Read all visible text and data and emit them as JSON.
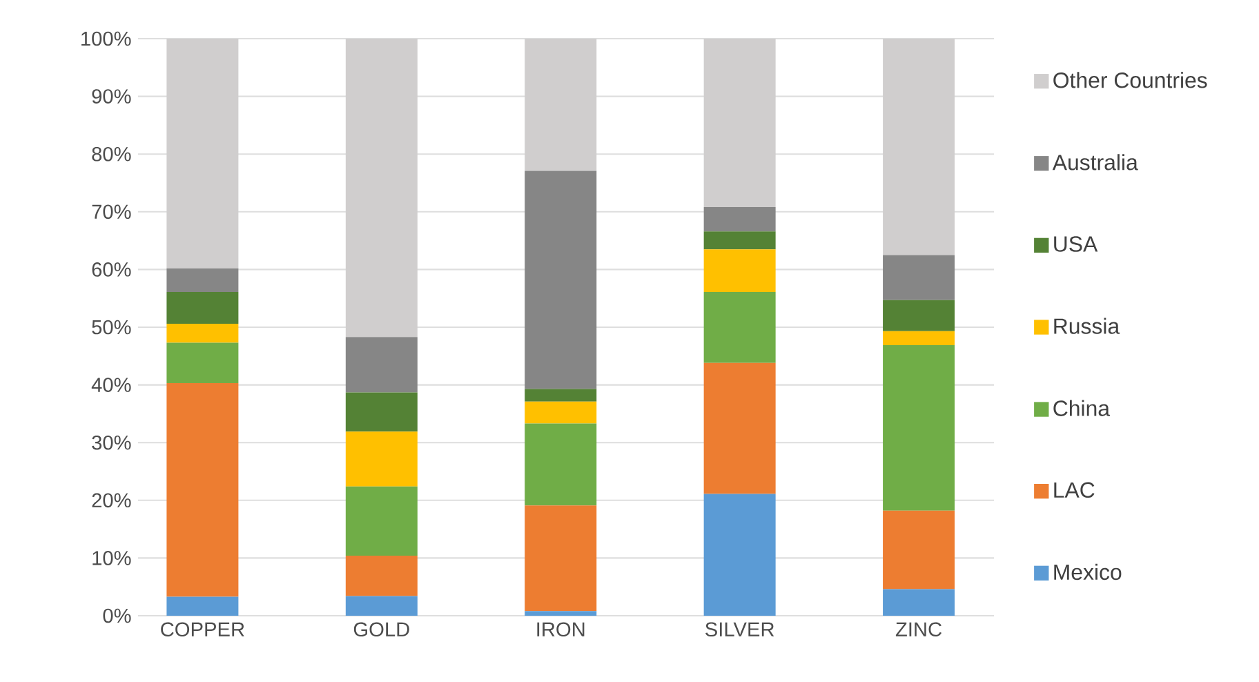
{
  "chart_data": {
    "type": "bar",
    "stacked": true,
    "categories": [
      "COPPER",
      "GOLD",
      "IRON",
      "SILVER",
      "ZINC"
    ],
    "series": [
      {
        "name": "Mexico",
        "color": "#5b9bd5",
        "values": [
          3.3,
          3.4,
          0.8,
          21.1,
          4.6
        ]
      },
      {
        "name": "LAC",
        "color": "#ed7d31",
        "values": [
          37.0,
          7.0,
          18.3,
          22.7,
          13.6
        ]
      },
      {
        "name": "China",
        "color": "#70ad47",
        "values": [
          7.0,
          12.0,
          14.2,
          12.3,
          28.7
        ]
      },
      {
        "name": "Russia",
        "color": "#ffc000",
        "values": [
          3.3,
          9.5,
          3.8,
          7.4,
          2.4
        ]
      },
      {
        "name": "USA",
        "color": "#548235",
        "values": [
          5.5,
          6.8,
          2.2,
          3.1,
          5.4
        ]
      },
      {
        "name": "Australia",
        "color": "#868686",
        "values": [
          4.1,
          9.6,
          37.8,
          4.2,
          7.8
        ]
      },
      {
        "name": "Other Countries",
        "color": "#d0cece",
        "values": [
          39.8,
          51.7,
          22.9,
          29.2,
          37.5
        ]
      }
    ],
    "ylim": [
      0,
      100
    ],
    "yticks": [
      {
        "value": 0,
        "label": "0%"
      },
      {
        "value": 10,
        "label": "10%"
      },
      {
        "value": 20,
        "label": "20%"
      },
      {
        "value": 30,
        "label": "30%"
      },
      {
        "value": 40,
        "label": "40%"
      },
      {
        "value": 50,
        "label": "50%"
      },
      {
        "value": 60,
        "label": "60%"
      },
      {
        "value": 70,
        "label": "70%"
      },
      {
        "value": 80,
        "label": "80%"
      },
      {
        "value": 90,
        "label": "90%"
      },
      {
        "value": 100,
        "label": "100%"
      }
    ],
    "grid": "y",
    "legend": "right"
  }
}
